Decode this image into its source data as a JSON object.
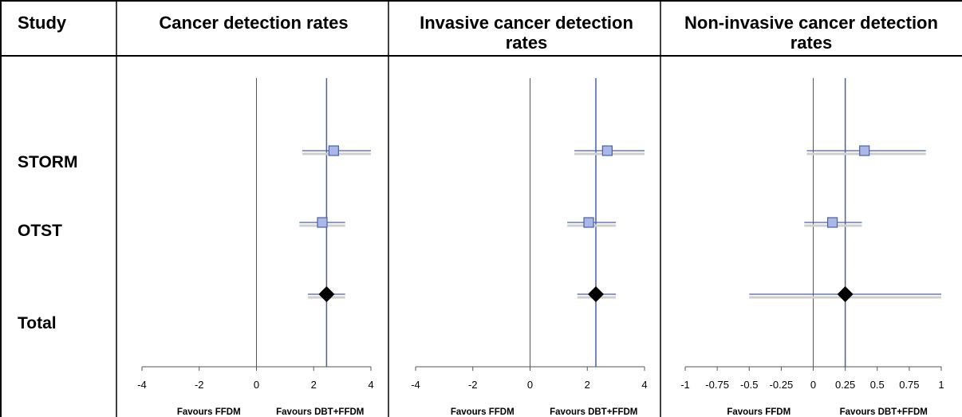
{
  "header": {
    "study_col": "Study"
  },
  "studies": [
    "STORM",
    "OTST",
    "Total"
  ],
  "chart_data": [
    {
      "type": "forest",
      "title_lines": [
        "Cancer detection rates"
      ],
      "xlim": [
        -4,
        4
      ],
      "ticks": [
        -4,
        -2,
        0,
        2,
        4
      ],
      "tick_labels": [
        "-4",
        "-2",
        "0",
        "2",
        "4"
      ],
      "favours_left": "Favours FFDM",
      "favours_right": "Favours DBT+FFDM",
      "reference_line": 0,
      "pooled_line": 2.45,
      "studies": [
        {
          "name": "STORM",
          "estimate": 2.7,
          "ci": [
            1.6,
            4.0
          ]
        },
        {
          "name": "OTST",
          "estimate": 2.3,
          "ci": [
            1.5,
            3.1
          ]
        }
      ],
      "total": {
        "name": "Total",
        "estimate": 2.45,
        "ci": [
          1.8,
          3.1
        ]
      }
    },
    {
      "type": "forest",
      "title_lines": [
        "Invasive cancer detection",
        "rates"
      ],
      "xlim": [
        -4,
        4
      ],
      "ticks": [
        -4,
        -2,
        0,
        2,
        4
      ],
      "tick_labels": [
        "-4",
        "-2",
        "0",
        "2",
        "4"
      ],
      "favours_left": "Favours FFDM",
      "favours_right": "Favours DBT+FFDM",
      "reference_line": 0,
      "pooled_line": 2.3,
      "studies": [
        {
          "name": "STORM",
          "estimate": 2.7,
          "ci": [
            1.55,
            4.0
          ]
        },
        {
          "name": "OTST",
          "estimate": 2.05,
          "ci": [
            1.3,
            3.0
          ]
        }
      ],
      "total": {
        "name": "Total",
        "estimate": 2.3,
        "ci": [
          1.65,
          3.0
        ]
      }
    },
    {
      "type": "forest",
      "title_lines": [
        "Non-invasive cancer detection",
        "rates"
      ],
      "xlim": [
        -1,
        1
      ],
      "ticks": [
        -1,
        -0.75,
        -0.5,
        -0.25,
        0,
        0.25,
        0.5,
        0.75,
        1
      ],
      "tick_labels": [
        "-1",
        "-0.75",
        "-0.5",
        "-0.25",
        "0",
        "0.25",
        "0.5",
        "0.75",
        "1"
      ],
      "favours_left": "Favours FFDM",
      "favours_right": "Favours DBT+FFDM",
      "reference_line": 0,
      "pooled_line": 0.25,
      "studies": [
        {
          "name": "STORM",
          "estimate": 0.4,
          "ci": [
            -0.05,
            0.88
          ]
        },
        {
          "name": "OTST",
          "estimate": 0.15,
          "ci": [
            -0.07,
            0.38
          ]
        }
      ],
      "total": {
        "name": "Total",
        "estimate": 0.25,
        "ci": [
          -0.5,
          1.0
        ]
      }
    }
  ]
}
